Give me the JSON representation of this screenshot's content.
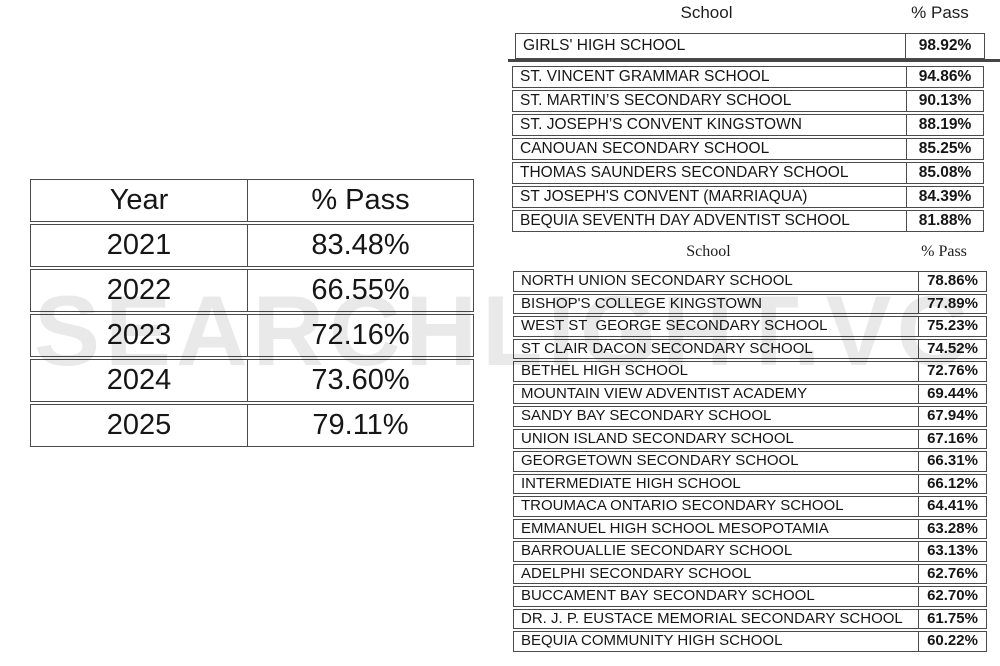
{
  "watermark": "SEARCHLIGHT.VC",
  "year_table": {
    "header": {
      "year": "Year",
      "pass": "% Pass"
    },
    "rows": [
      {
        "year": "2021",
        "pass": "83.48%"
      },
      {
        "year": "2022",
        "pass": "66.55%"
      },
      {
        "year": "2023",
        "pass": "72.16%"
      },
      {
        "year": "2024",
        "pass": "73.60%"
      },
      {
        "year": "2025",
        "pass": "79.11%"
      }
    ]
  },
  "top_table": {
    "header": {
      "school": "School",
      "pass": "% Pass"
    },
    "top_row": {
      "school": "GIRLS' HIGH SCHOOL",
      "pass": "98.92%"
    },
    "rows": [
      {
        "school": "ST. VINCENT GRAMMAR SCHOOL",
        "pass": "94.86%"
      },
      {
        "school": "ST. MARTIN’S SECONDARY SCHOOL",
        "pass": "90.13%"
      },
      {
        "school": "ST. JOSEPH’S CONVENT KINGSTOWN",
        "pass": "88.19%"
      },
      {
        "school": "CANOUAN SECONDARY SCHOOL",
        "pass": "85.25%"
      },
      {
        "school": "THOMAS SAUNDERS SECONDARY SCHOOL",
        "pass": "85.08%"
      },
      {
        "school": "ST JOSEPH'S CONVENT (MARRIAQUA)",
        "pass": "84.39%"
      },
      {
        "school": "BEQUIA SEVENTH DAY ADVENTIST SCHOOL",
        "pass": "81.88%"
      }
    ]
  },
  "bottom_table": {
    "header": {
      "school": "School",
      "pass": "% Pass"
    },
    "rows": [
      {
        "school": "NORTH UNION SECONDARY SCHOOL",
        "pass": "78.86%"
      },
      {
        "school": "BISHOP'S COLLEGE KINGSTOWN",
        "pass": "77.89%"
      },
      {
        "school": "WEST ST  GEORGE SECONDARY SCHOOL",
        "pass": "75.23%"
      },
      {
        "school": "ST CLAIR DACON SECONDARY SCHOOL",
        "pass": "74.52%"
      },
      {
        "school": "BETHEL HIGH SCHOOL",
        "pass": "72.76%"
      },
      {
        "school": "MOUNTAIN VIEW ADVENTIST ACADEMY",
        "pass": "69.44%"
      },
      {
        "school": "SANDY BAY SECONDARY SCHOOL",
        "pass": "67.94%"
      },
      {
        "school": "UNION ISLAND SECONDARY SCHOOL",
        "pass": "67.16%"
      },
      {
        "school": "GEORGETOWN SECONDARY SCHOOL",
        "pass": "66.31%"
      },
      {
        "school": "INTERMEDIATE HIGH SCHOOL",
        "pass": "66.12%"
      },
      {
        "school": "TROUMACA ONTARIO SECONDARY SCHOOL",
        "pass": "64.41%"
      },
      {
        "school": "EMMANUEL HIGH SCHOOL MESOPOTAMIA",
        "pass": "63.28%"
      },
      {
        "school": "BARROUALLIE SECONDARY SCHOOL",
        "pass": "63.13%"
      },
      {
        "school": "ADELPHI SECONDARY SCHOOL",
        "pass": "62.76%"
      },
      {
        "school": "BUCCAMENT BAY SECONDARY SCHOOL",
        "pass": "62.70%"
      },
      {
        "school": "DR. J. P. EUSTACE MEMORIAL SECONDARY SCHOOL",
        "pass": "61.75%"
      },
      {
        "school": "BEQUIA COMMUNITY HIGH SCHOOL",
        "pass": "60.22%"
      }
    ]
  }
}
